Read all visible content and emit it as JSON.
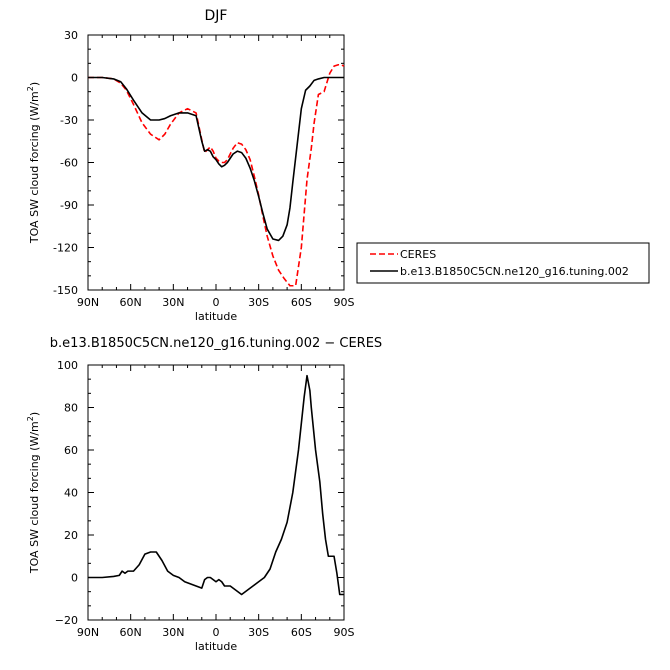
{
  "chart_data": [
    {
      "type": "line",
      "title": "DJF",
      "xlabel": "latitude",
      "ylabel": "TOA SW cloud forcing (W/m",
      "ylabel_sup": "2",
      "ylabel_close": ")",
      "xlim": [
        90,
        -90
      ],
      "ylim": [
        -150,
        30
      ],
      "xticks": [
        90,
        60,
        30,
        0,
        -30,
        -60,
        -90
      ],
      "xtick_labels": [
        "90N",
        "60N",
        "30N",
        "0",
        "30S",
        "60S",
        "90S"
      ],
      "yticks": [
        -150,
        -120,
        -90,
        -60,
        -30,
        0,
        30
      ],
      "ytick_labels": [
        "-150",
        "-120",
        "-90",
        "-60",
        "-30",
        "0",
        "30"
      ],
      "legend": "right",
      "series": [
        {
          "name": "CERES",
          "color": "#ff0000",
          "dash": "dashed",
          "x": [
            90,
            80,
            72,
            67,
            63,
            58,
            52,
            46,
            40,
            36,
            32,
            26,
            20,
            14,
            10,
            8,
            6,
            4,
            2,
            0,
            -2,
            -4,
            -6,
            -8,
            -10,
            -12,
            -15,
            -18,
            -21,
            -24,
            -27,
            -30,
            -33,
            -36,
            -40,
            -44,
            -48,
            -52,
            -56,
            -60,
            -64,
            -67,
            -69,
            -72,
            -76,
            -80,
            -83,
            -86,
            -88,
            -90
          ],
          "y": [
            0,
            0,
            -1,
            -4,
            -9,
            -19,
            -32,
            -40,
            -44,
            -40,
            -33,
            -25,
            -22,
            -25,
            -44,
            -53,
            -51,
            -49,
            -52,
            -57,
            -59,
            -60,
            -60,
            -58,
            -54,
            -50,
            -46,
            -47,
            -51,
            -58,
            -70,
            -83,
            -98,
            -112,
            -126,
            -136,
            -142,
            -147,
            -147,
            -120,
            -72,
            -50,
            -32,
            -12,
            -10,
            3,
            8,
            9,
            9,
            8
          ]
        },
        {
          "name": "b.e13.B1850C5CN.ne120_g16.tuning.002",
          "color": "#000000",
          "dash": "solid",
          "x": [
            90,
            80,
            72,
            67,
            63,
            58,
            52,
            46,
            40,
            36,
            32,
            26,
            20,
            14,
            10,
            8,
            6,
            4,
            2,
            0,
            -2,
            -4,
            -6,
            -8,
            -10,
            -12,
            -15,
            -18,
            -21,
            -24,
            -27,
            -30,
            -33,
            -36,
            -40,
            -44,
            -47,
            -50,
            -52,
            -54,
            -57,
            -60,
            -63,
            -66,
            -69,
            -72,
            -76,
            -80,
            -85,
            -90
          ],
          "y": [
            0,
            0,
            -1,
            -3,
            -8,
            -16,
            -25,
            -30,
            -30,
            -29,
            -27,
            -25,
            -25,
            -27,
            -45,
            -52,
            -51,
            -52,
            -56,
            -58,
            -61,
            -63,
            -62,
            -60,
            -57,
            -54,
            -52,
            -53,
            -57,
            -64,
            -73,
            -84,
            -96,
            -107,
            -114,
            -115,
            -112,
            -104,
            -92,
            -74,
            -48,
            -22,
            -9,
            -6,
            -2,
            -1,
            0,
            0,
            0,
            0
          ]
        }
      ]
    },
    {
      "type": "line",
      "title": "b.e13.B1850C5CN.ne120_g16.tuning.002 − CERES",
      "xlabel": "latitude",
      "ylabel": "TOA SW cloud forcing (W/m",
      "ylabel_sup": "2",
      "ylabel_close": ")",
      "xlim": [
        90,
        -90
      ],
      "ylim": [
        -20,
        100
      ],
      "xticks": [
        90,
        60,
        30,
        0,
        -30,
        -60,
        -90
      ],
      "xtick_labels": [
        "90N",
        "60N",
        "30N",
        "0",
        "30S",
        "60S",
        "90S"
      ],
      "yticks": [
        -20,
        0,
        20,
        40,
        60,
        80,
        100
      ],
      "ytick_labels": [
        "−20",
        "0",
        "20",
        "40",
        "60",
        "80",
        "100"
      ],
      "series": [
        {
          "color": "#000000",
          "x": [
            90,
            80,
            72,
            68,
            66,
            64,
            62,
            58,
            54,
            50,
            46,
            42,
            38,
            34,
            30,
            26,
            22,
            18,
            14,
            10,
            8,
            6,
            4,
            2,
            0,
            -2,
            -4,
            -6,
            -8,
            -10,
            -14,
            -18,
            -22,
            -26,
            -30,
            -34,
            -38,
            -42,
            -46,
            -50,
            -54,
            -58,
            -62,
            -64,
            -66,
            -67,
            -70,
            -73,
            -75,
            -77,
            -79,
            -81,
            -83,
            -85,
            -87,
            -88,
            -90
          ],
          "y": [
            0,
            0,
            0.5,
            1,
            3,
            2,
            3,
            3,
            6,
            11,
            12,
            12,
            8,
            3,
            1,
            0,
            -2,
            -3,
            -4,
            -5,
            -1,
            0,
            0,
            -1,
            -2,
            -1,
            -2,
            -4,
            -4,
            -4,
            -6,
            -8,
            -6,
            -4,
            -2,
            0,
            4,
            12,
            18,
            26,
            40,
            60,
            85,
            95,
            88,
            80,
            60,
            45,
            30,
            18,
            10,
            10,
            10,
            2,
            -8,
            -8,
            -8
          ]
        }
      ]
    }
  ]
}
